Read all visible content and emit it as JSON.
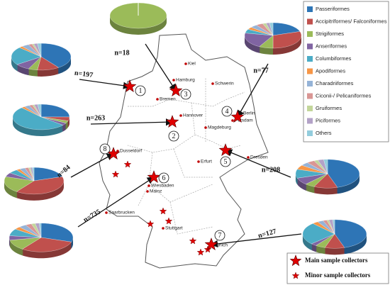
{
  "legend": [
    {
      "label": "Passeriformes",
      "color": "#2e75b6"
    },
    {
      "label": "Accipitriformes/ Falconiformes",
      "color": "#c0504d"
    },
    {
      "label": "Strigiformes",
      "color": "#9bbb59"
    },
    {
      "label": "Anseriformes",
      "color": "#8064a2"
    },
    {
      "label": "Columbiformes",
      "color": "#4bacc6"
    },
    {
      "label": "Apodiformes",
      "color": "#f79646"
    },
    {
      "label": "Charadriiformes",
      "color": "#95b3d7"
    },
    {
      "label": "Ciconii-/ Pelicaniformes",
      "color": "#d99694"
    },
    {
      "label": "Gruiformes",
      "color": "#c3d69b"
    },
    {
      "label": "Piciformes",
      "color": "#b3a2c7"
    },
    {
      "label": "Others",
      "color": "#93cddd"
    }
  ],
  "marker_legend": [
    "Main sample collectors",
    "Minor sample collectors"
  ],
  "sites": [
    {
      "n": "n=197",
      "number": "1",
      "pie": [
        40,
        12,
        5,
        8,
        22,
        2,
        4,
        2,
        1,
        2,
        2
      ]
    },
    {
      "n": "n=263",
      "number": "2",
      "pie": [
        25,
        5,
        3,
        3,
        52,
        2,
        3,
        2,
        1,
        2,
        2
      ]
    },
    {
      "n": "n=18",
      "number": "3",
      "pie": [
        0,
        0,
        100,
        0,
        0,
        0,
        0,
        0,
        0,
        0,
        0
      ]
    },
    {
      "n": "n=77",
      "number": "4",
      "pie": [
        20,
        30,
        8,
        20,
        5,
        3,
        4,
        4,
        2,
        2,
        2
      ]
    },
    {
      "n": "n=208",
      "number": "5",
      "pie": [
        45,
        12,
        5,
        8,
        10,
        5,
        4,
        4,
        2,
        3,
        2
      ]
    },
    {
      "n": "n=735",
      "number": "6",
      "pie": [
        30,
        30,
        12,
        5,
        8,
        3,
        4,
        3,
        2,
        2,
        1
      ]
    },
    {
      "n": "n=127",
      "number": "7",
      "pie": [
        45,
        10,
        5,
        3,
        25,
        3,
        3,
        2,
        1,
        2,
        1
      ]
    },
    {
      "n": "n=84",
      "number": "8",
      "pie": [
        20,
        40,
        20,
        5,
        5,
        2,
        3,
        2,
        1,
        1,
        1
      ]
    }
  ],
  "cities": [
    "Kiel",
    "Hamburg",
    "Schwerin",
    "Bremen",
    "Hannover",
    "Berlin",
    "Potsdam",
    "Magdeburg",
    "Dusseldorf",
    "Dresden",
    "Erfurt",
    "Wiesbaden",
    "Mainz",
    "Saarbrucken",
    "Stuttgart",
    "Munich"
  ]
}
